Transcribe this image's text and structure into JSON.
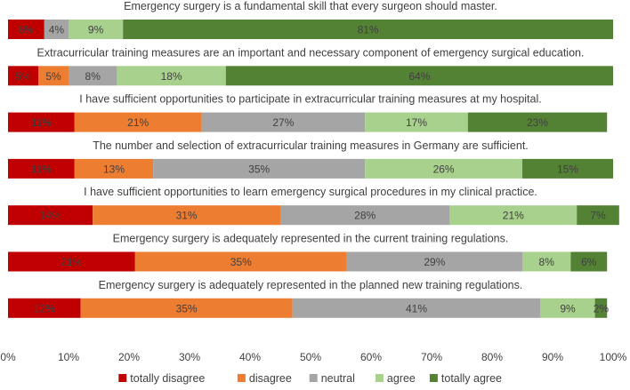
{
  "chart_data": {
    "type": "bar",
    "orientation": "horizontal",
    "stacked": true,
    "xlim": [
      0,
      100
    ],
    "x_ticks": [
      "0%",
      "10%",
      "20%",
      "30%",
      "40%",
      "50%",
      "60%",
      "70%",
      "80%",
      "90%",
      "100%"
    ],
    "grid": false,
    "legend_position": "bottom",
    "series": [
      {
        "name": "totally disagree",
        "color": "#c00000"
      },
      {
        "name": "disagree",
        "color": "#ed7d31"
      },
      {
        "name": "neutral",
        "color": "#a5a5a5"
      },
      {
        "name": "agree",
        "color": "#a9d18e"
      },
      {
        "name": "totally agree",
        "color": "#548235"
      }
    ],
    "rows": [
      {
        "statement": "Emergency surgery is a fundamental skill that every surgeon should master.",
        "values": [
          6,
          4,
          9,
          81
        ],
        "series_index": [
          0,
          2,
          3,
          4
        ],
        "labels": [
          "6%",
          "4%",
          "9%",
          "81%"
        ]
      },
      {
        "statement": "Extracurricular training measures are an important and necessary component of emergency surgical education.",
        "values": [
          5,
          5,
          8,
          18,
          64
        ],
        "series_index": [
          0,
          1,
          2,
          3,
          4
        ],
        "labels": [
          "5%",
          "5%",
          "8%",
          "18%",
          "64%"
        ]
      },
      {
        "statement": "I have sufficient opportunities to participate in extracurricular training measures at my hospital.",
        "values": [
          11,
          21,
          27,
          17,
          23
        ],
        "series_index": [
          0,
          1,
          2,
          3,
          4
        ],
        "labels": [
          "11%",
          "21%",
          "27%",
          "17%",
          "23%"
        ]
      },
      {
        "statement": "The number and selection of extracurricular training measures in Germany are sufficient.",
        "values": [
          11,
          13,
          35,
          26,
          15
        ],
        "series_index": [
          0,
          1,
          2,
          3,
          4
        ],
        "labels": [
          "11%",
          "13%",
          "35%",
          "26%",
          "15%"
        ]
      },
      {
        "statement": "I have sufficient opportunities to learn emergency surgical procedures in my clinical practice.",
        "values": [
          14,
          31,
          28,
          21,
          7
        ],
        "series_index": [
          0,
          1,
          2,
          3,
          4
        ],
        "labels": [
          "14%",
          "31%",
          "28%",
          "21%",
          "7%"
        ]
      },
      {
        "statement": "Emergency surgery is adequately represented in the current training regulations.",
        "values": [
          21,
          35,
          29,
          8,
          6
        ],
        "series_index": [
          0,
          1,
          2,
          3,
          4
        ],
        "labels": [
          "21%",
          "35%",
          "29%",
          "8%",
          "6%"
        ]
      },
      {
        "statement": "Emergency surgery is adequately represented in the planned new training regulations.",
        "values": [
          12,
          35,
          41,
          9,
          2
        ],
        "series_index": [
          0,
          1,
          2,
          3,
          4
        ],
        "labels": [
          "12%",
          "35%",
          "41%",
          "9%",
          "2%"
        ]
      }
    ]
  }
}
